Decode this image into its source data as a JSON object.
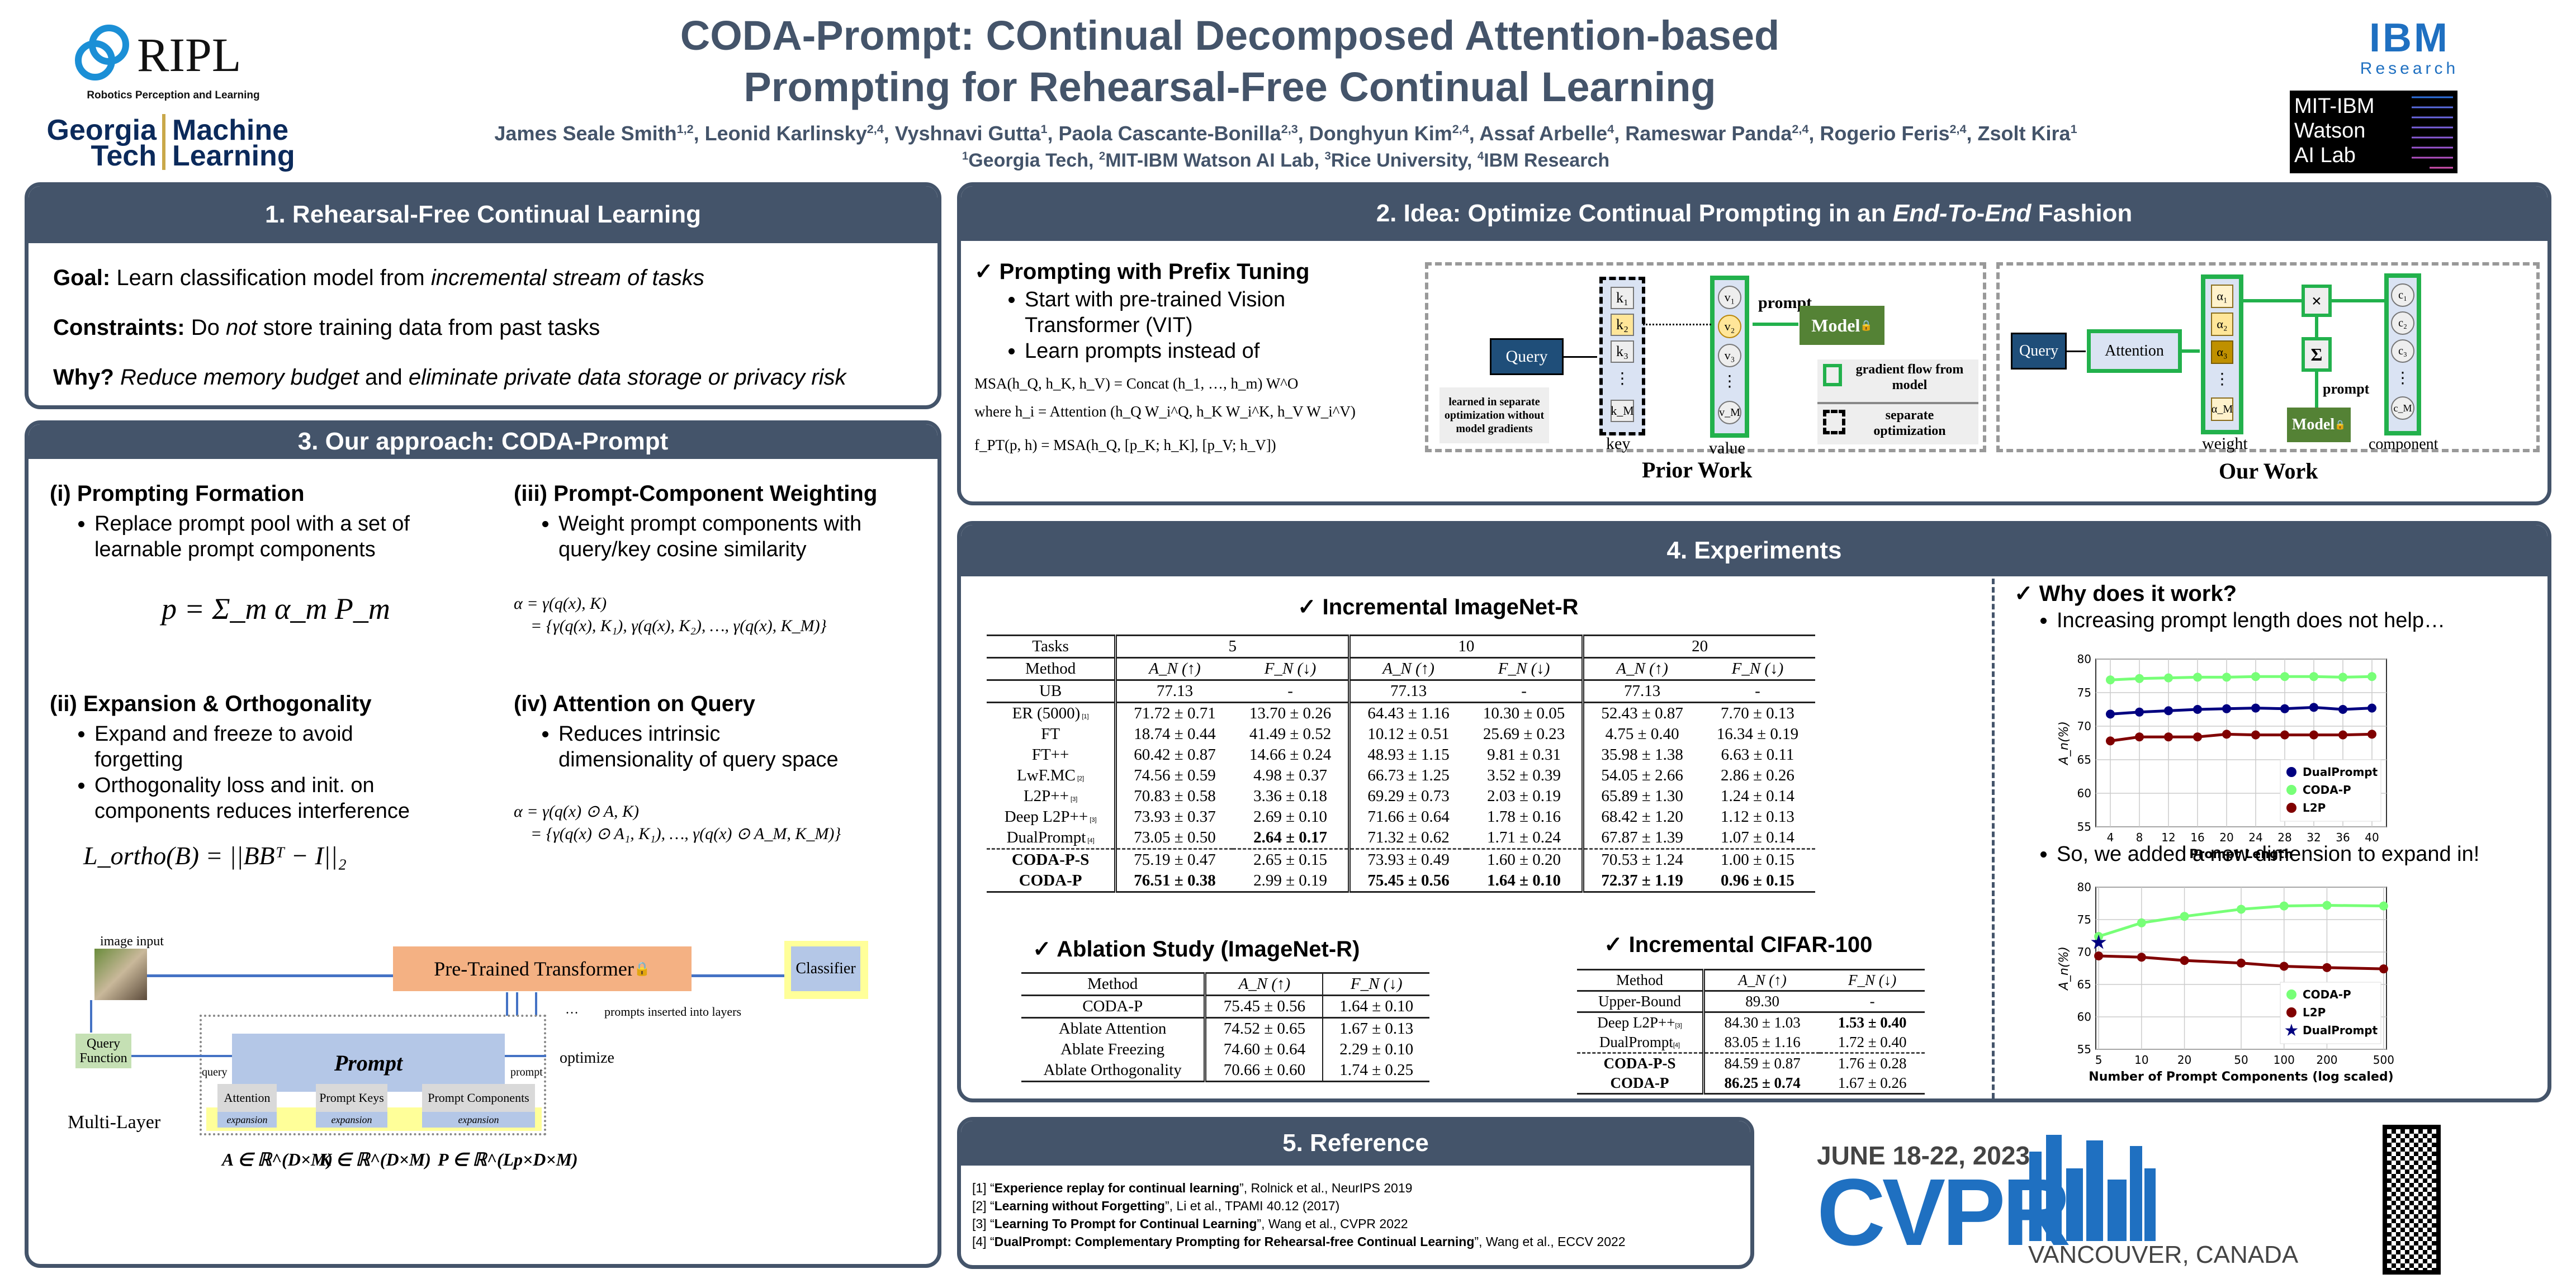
{
  "header": {
    "title_line1": "CODA-Prompt: COntinual Decomposed Attention-based",
    "title_line2": "Prompting for Rehearsal-Free Continual Learning",
    "authors": [
      {
        "name": "James Seale Smith",
        "sup": "1,2"
      },
      {
        "name": "Leonid Karlinsky",
        "sup": "2,4"
      },
      {
        "name": "Vyshnavi Gutta",
        "sup": "1"
      },
      {
        "name": "Paola Cascante-Bonilla",
        "sup": "2,3"
      },
      {
        "name": "Donghyun Kim",
        "sup": "2,4"
      },
      {
        "name": "Assaf Arbelle",
        "sup": "4"
      },
      {
        "name": "Rameswar Panda",
        "sup": "2,4"
      },
      {
        "name": "Rogerio Feris",
        "sup": "2,4"
      },
      {
        "name": "Zsolt Kira",
        "sup": "1"
      }
    ],
    "affiliations": [
      {
        "sup": "1",
        "name": "Georgia Tech"
      },
      {
        "sup": "2",
        "name": "MIT-IBM Watson AI Lab"
      },
      {
        "sup": "3",
        "name": "Rice University"
      },
      {
        "sup": "4",
        "name": "IBM Research"
      }
    ]
  },
  "logos": {
    "ripl": "RIPL",
    "ripl_sub": "Robotics Perception and Learning",
    "gt_left": [
      "Georgia",
      "Tech"
    ],
    "gt_right": [
      "Machine",
      "Learning"
    ],
    "ibm": "IBM",
    "ibm_sub": "Research",
    "mit_ibm": [
      "MIT-IBM",
      "Watson",
      "AI Lab"
    ],
    "cvpr_date": "JUNE 18-22, 2023",
    "cvpr": "CVPR",
    "cvpr_place": "VANCOUVER, CANADA"
  },
  "section1": {
    "title": "1. Rehearsal-Free Continual Learning",
    "goal_label": "Goal:",
    "goal_text": "Learn classification model from",
    "goal_italic": "incremental stream of tasks",
    "constraints_label": "Constraints:",
    "constraints_pre": "Do",
    "constraints_italic": "not",
    "constraints_post": "store training data from past tasks",
    "why_label": "Why?",
    "why_italic1": "Reduce memory budget",
    "why_mid": "and",
    "why_italic2": "eliminate private data storage or privacy risk"
  },
  "section2": {
    "title_pre": "2. Idea: Optimize Continual Prompting in an",
    "title_italic": "End-To-End",
    "title_post": "Fashion",
    "check_heading": "Prompting with Prefix Tuning",
    "bullets": [
      "Start with pre-trained Vision Transformer (VIT)",
      "Learn prompts instead of"
    ],
    "eq1": "MSA(h_Q, h_K, h_V) = Concat (h_1, …, h_m) W^O",
    "eq2": "where h_i = Attention (h_Q W_i^Q, h_K W_i^K, h_V W_i^V)",
    "eq3": "f_PT(p, h) = MSA(h_Q, [p_K; h_K], [p_V; h_V])",
    "prior": {
      "caption": "Prior Work",
      "query": "Query",
      "keys": [
        "k₁",
        "k₂",
        "k₃",
        "⋮",
        "k_M"
      ],
      "values": [
        "v₁",
        "v₂",
        "v₃",
        "⋮",
        "v_M"
      ],
      "key_label": "key",
      "value_label": "value",
      "prompt_label": "prompt",
      "model": "Model",
      "note": "learned in separate optimization without model gradients",
      "legend_gradient": "gradient flow from model",
      "legend_separate": "separate optimization"
    },
    "ours": {
      "caption": "Our Work",
      "query": "Query",
      "attention": "Attention",
      "weights": [
        "α₁",
        "α₂",
        "α₃",
        "⋮",
        "α_M"
      ],
      "weight_label": "weight",
      "times": "×",
      "sum": "Σ",
      "prompt_label": "prompt",
      "model": "Model",
      "components": [
        "c₁",
        "c₂",
        "c₃",
        "⋮",
        "c_M"
      ],
      "component_label": "component"
    }
  },
  "section3": {
    "title": "3. Our approach: CODA-Prompt",
    "i_title": "(i) Prompting Formation",
    "i_bullet": "Replace prompt pool with a set of learnable prompt components",
    "i_eq": "p = Σ_m α_m P_m",
    "ii_title": "(ii) Expansion & Orthogonality",
    "ii_bullets": [
      "Expand and freeze to avoid forgetting",
      "Orthogonality loss and init. on components reduces interference"
    ],
    "ii_eq": "L_ortho(B) = ||BBᵀ − I||₂",
    "iii_title": "(iii) Prompt-Component Weighting",
    "iii_bullet": "Weight prompt components with query/key cosine similarity",
    "iii_eq1": "α = γ(q(x), K)",
    "iii_eq2": "= {γ(q(x), K₁), γ(q(x), K₂), …, γ(q(x), K_M)}",
    "iv_title": "(iv) Attention on Query",
    "iv_bullet": "Reduces intrinsic dimensionality of query space",
    "iv_eq1": "α = γ(q(x) ⊙ A, K)",
    "iv_eq2": "= {γ(q(x) ⊙ A₁, K₁), …, γ(q(x) ⊙ A_M, K_M)}",
    "diagram": {
      "image_input": "image input",
      "transformer": "Pre-Trained Transformer",
      "classifier": "Classifier",
      "inserted": "prompts inserted into layers",
      "ellipsis": "…",
      "query_fn": "Query Function",
      "query": "query",
      "prompt_box": "Prompt",
      "prompt_out": "prompt",
      "optimize": "optimize",
      "multilayer": "Multi-Layer",
      "attention": "Attention",
      "keys": "Prompt Keys",
      "components": "Prompt Components",
      "expansion": "expansion",
      "dim_A": "A ∈ ℝ^(D×M)",
      "dim_K": "K ∈ ℝ^(D×M)",
      "dim_P": "P ∈ ℝ^(Lp×D×M)"
    }
  },
  "section4": {
    "title": "4. Experiments",
    "imagenet": {
      "heading": "Incremental ImageNet-R",
      "tasks_label": "Tasks",
      "tasks": [
        "5",
        "10",
        "20"
      ],
      "method_label": "Method",
      "metric_a": "A_N (↑)",
      "metric_f": "F_N (↓)",
      "rows": [
        {
          "method": "UB",
          "ref": "",
          "cells": [
            "77.13",
            "-",
            "77.13",
            "-",
            "77.13",
            "-"
          ],
          "bold": []
        },
        {
          "method": "ER (5000)",
          "ref": "[1]",
          "cells": [
            "71.72 ± 0.71",
            "13.70 ± 0.26",
            "64.43 ± 1.16",
            "10.30 ± 0.05",
            "52.43 ± 0.87",
            "7.70 ± 0.13"
          ],
          "bold": []
        },
        {
          "method": "FT",
          "ref": "",
          "cells": [
            "18.74 ± 0.44",
            "41.49 ± 0.52",
            "10.12 ± 0.51",
            "25.69 ± 0.23",
            "4.75 ± 0.40",
            "16.34 ± 0.19"
          ],
          "bold": []
        },
        {
          "method": "FT++",
          "ref": "",
          "cells": [
            "60.42 ± 0.87",
            "14.66 ± 0.24",
            "48.93 ± 1.15",
            "9.81 ± 0.31",
            "35.98 ± 1.38",
            "6.63 ± 0.11"
          ],
          "bold": []
        },
        {
          "method": "LwF.MC",
          "ref": "[2]",
          "cells": [
            "74.56 ± 0.59",
            "4.98 ± 0.37",
            "66.73 ± 1.25",
            "3.52 ± 0.39",
            "54.05 ± 2.66",
            "2.86 ± 0.26"
          ],
          "bold": []
        },
        {
          "method": "L2P++",
          "ref": "[3]",
          "cells": [
            "70.83 ± 0.58",
            "3.36 ± 0.18",
            "69.29 ± 0.73",
            "2.03 ± 0.19",
            "65.89 ± 1.30",
            "1.24 ± 0.14"
          ],
          "bold": []
        },
        {
          "method": "Deep L2P++",
          "ref": "[3]",
          "cells": [
            "73.93 ± 0.37",
            "2.69 ± 0.10",
            "71.66 ± 0.64",
            "1.78 ± 0.16",
            "68.42 ± 1.20",
            "1.12 ± 0.13"
          ],
          "bold": []
        },
        {
          "method": "DualPrompt",
          "ref": "[4]",
          "cells": [
            "73.05 ± 0.50",
            "2.64 ± 0.17",
            "71.32 ± 0.62",
            "1.71 ± 0.24",
            "67.87 ± 1.39",
            "1.07 ± 0.14"
          ],
          "bold": [
            1
          ]
        },
        {
          "method": "CODA-P-S",
          "ref": "",
          "cells": [
            "75.19 ± 0.47",
            "2.65 ± 0.15",
            "73.93 ± 0.49",
            "1.60 ± 0.20",
            "70.53 ± 1.24",
            "1.00 ± 0.15"
          ],
          "bold": []
        },
        {
          "method": "CODA-P",
          "ref": "",
          "cells": [
            "76.51 ± 0.38",
            "2.99 ± 0.19",
            "75.45 ± 0.56",
            "1.64 ± 0.10",
            "72.37 ± 1.19",
            "0.96 ± 0.15"
          ],
          "bold": [
            0,
            2,
            3,
            4,
            5
          ]
        }
      ]
    },
    "ablation": {
      "heading": "Ablation Study (ImageNet-R)",
      "headers": [
        "Method",
        "A_N (↑)",
        "F_N (↓)"
      ],
      "rows": [
        [
          "CODA-P",
          "75.45 ± 0.56",
          "1.64 ± 0.10"
        ],
        [
          "Ablate Attention",
          "74.52 ± 0.65",
          "1.67 ± 0.13"
        ],
        [
          "Ablate Freezing",
          "74.60 ± 0.64",
          "2.29 ± 0.10"
        ],
        [
          "Ablate Orthogonality",
          "70.66 ± 0.60",
          "1.74 ± 0.25"
        ]
      ]
    },
    "cifar": {
      "heading": "Incremental CIFAR-100",
      "headers": [
        "Method",
        "A_N (↑)",
        "F_N (↓)"
      ],
      "rows": [
        {
          "method": "Upper-Bound",
          "ref": "",
          "cells": [
            "89.30",
            "-"
          ],
          "bold": []
        },
        {
          "method": "Deep L2P++",
          "ref": "[3]",
          "cells": [
            "84.30 ± 1.03",
            "1.53 ± 0.40"
          ],
          "bold": [
            1
          ]
        },
        {
          "method": "DualPrompt",
          "ref": "[4]",
          "cells": [
            "83.05 ± 1.16",
            "1.72 ± 0.40"
          ],
          "bold": []
        },
        {
          "method": "CODA-P-S",
          "ref": "",
          "cells": [
            "84.59 ± 0.87",
            "1.76 ± 0.28"
          ],
          "bold": []
        },
        {
          "method": "CODA-P",
          "ref": "",
          "cells": [
            "86.25 ± 0.74",
            "1.67 ± 0.26"
          ],
          "bold": [
            0
          ]
        }
      ]
    },
    "why": {
      "heading": "Why does it work?",
      "bullet1": "Increasing prompt length does not help…",
      "bullet2": "So, we added a new dimension to expand in!"
    }
  },
  "chart_data": [
    {
      "type": "line",
      "title": "",
      "xlabel": "Prompt Length",
      "ylabel": "A_n(%)",
      "x": [
        4,
        8,
        12,
        16,
        20,
        24,
        28,
        32,
        36,
        40
      ],
      "xticks": [
        "4",
        "8",
        "12",
        "16",
        "20",
        "24",
        "28",
        "32",
        "36",
        "40"
      ],
      "ylim": [
        55,
        80
      ],
      "yticks": [
        "55",
        "60",
        "65",
        "70",
        "75",
        "80"
      ],
      "grid": true,
      "legend": "lower-right",
      "series": [
        {
          "name": "DualPrompt",
          "color": "#000080",
          "values": [
            71.8,
            72.1,
            72.3,
            72.5,
            72.6,
            72.7,
            72.6,
            72.8,
            72.5,
            72.7
          ]
        },
        {
          "name": "CODA-P",
          "color": "#77ff77",
          "values": [
            76.9,
            77.1,
            77.2,
            77.3,
            77.3,
            77.4,
            77.4,
            77.4,
            77.3,
            77.4
          ]
        },
        {
          "name": "L2P",
          "color": "#800000",
          "values": [
            67.8,
            68.4,
            68.4,
            68.4,
            68.8,
            68.7,
            68.7,
            68.7,
            68.7,
            68.8
          ]
        }
      ]
    },
    {
      "type": "line",
      "title": "",
      "xlabel": "Number of Prompt Components (log scaled)",
      "ylabel": "A_n(%)",
      "xscale": "log",
      "x": [
        5,
        10,
        20,
        50,
        100,
        200,
        500
      ],
      "xticks": [
        "5",
        "10",
        "20",
        "50",
        "100",
        "200",
        "500"
      ],
      "ylim": [
        55,
        80
      ],
      "yticks": [
        "55",
        "60",
        "65",
        "70",
        "75",
        "80"
      ],
      "grid": true,
      "legend": "lower-right",
      "series": [
        {
          "name": "CODA-P",
          "color": "#77ff77",
          "marker": "circle",
          "values": [
            72.4,
            74.5,
            75.5,
            76.6,
            77.1,
            77.2,
            77.1
          ]
        },
        {
          "name": "L2P",
          "color": "#800000",
          "marker": "circle",
          "values": [
            69.4,
            69.2,
            68.7,
            68.3,
            67.8,
            67.6,
            67.4
          ]
        },
        {
          "name": "DualPrompt",
          "color": "#000080",
          "marker": "star",
          "points": [
            [
              5,
              71.5
            ]
          ]
        }
      ]
    }
  ],
  "section5": {
    "title": "5. Reference",
    "refs": [
      {
        "num": "[1]",
        "title": "Experience replay for continual learning",
        "rest": ", Rolnick et al., NeurIPS 2019"
      },
      {
        "num": "[2]",
        "title": "Learning without Forgetting",
        "rest": ", Li et al., TPAMI 40.12 (2017)"
      },
      {
        "num": "[3]",
        "title": "Learning To Prompt for Continual Learning",
        "rest": ", Wang et al., CVPR 2022"
      },
      {
        "num": "[4]",
        "title": "DualPrompt: Complementary Prompting for Rehearsal-free Continual Learning",
        "rest": ", Wang et al., ECCV 2022"
      }
    ]
  },
  "colors": {
    "panel": "#44546a",
    "green": "#22b14c",
    "model_green": "#548235",
    "query_blue": "#1f4e79",
    "light_blue": "#dae3f3",
    "prompt_blue": "#b4c7e7",
    "orange": "#f4b183",
    "yellow": "#ffff99"
  }
}
